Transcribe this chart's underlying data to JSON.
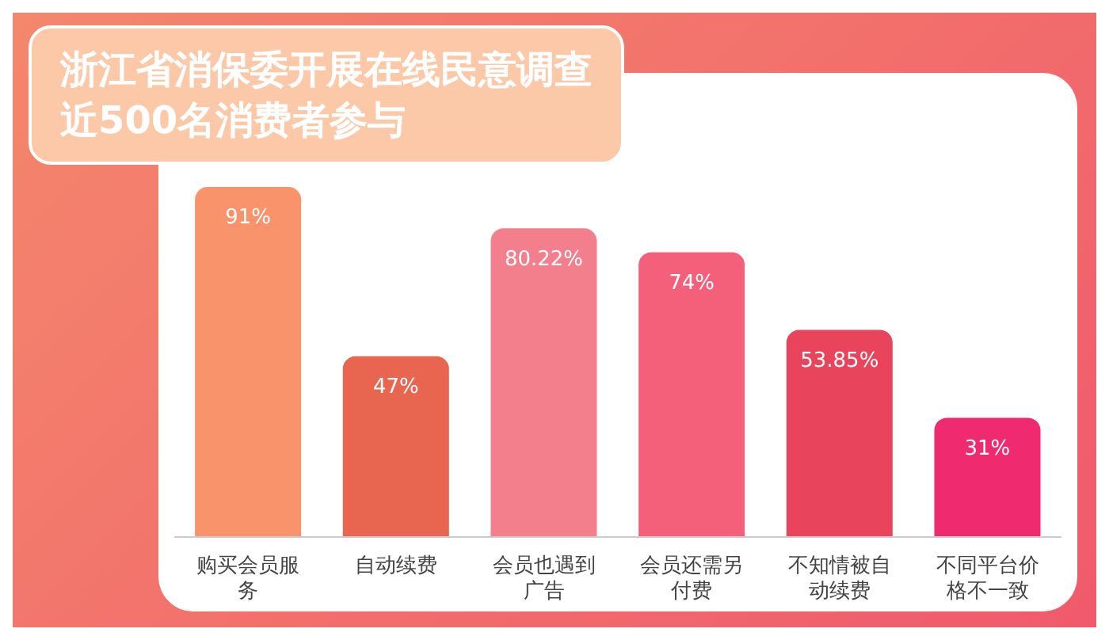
{
  "chart_data": {
    "type": "bar",
    "title": "浙江省消保委开展在线民意调查",
    "subtitle": "近500名消费者参与",
    "categories": [
      "购买会员服务",
      "自动续费",
      "会员也遇到广告",
      "会员还需另付费",
      "不知情被自动续费",
      "不同平台价格不一致"
    ],
    "values": [
      91,
      47,
      80.22,
      74,
      53.85,
      31
    ],
    "colors": [
      "#f8936c",
      "#e8654f",
      "#f47f8c",
      "#f4607a",
      "#e8445c",
      "#f02a6e"
    ],
    "value_labels": [
      "91%",
      "47%",
      "80.22%",
      "74%",
      "53.85%",
      "31%"
    ],
    "tick_labels": "x"
  }
}
